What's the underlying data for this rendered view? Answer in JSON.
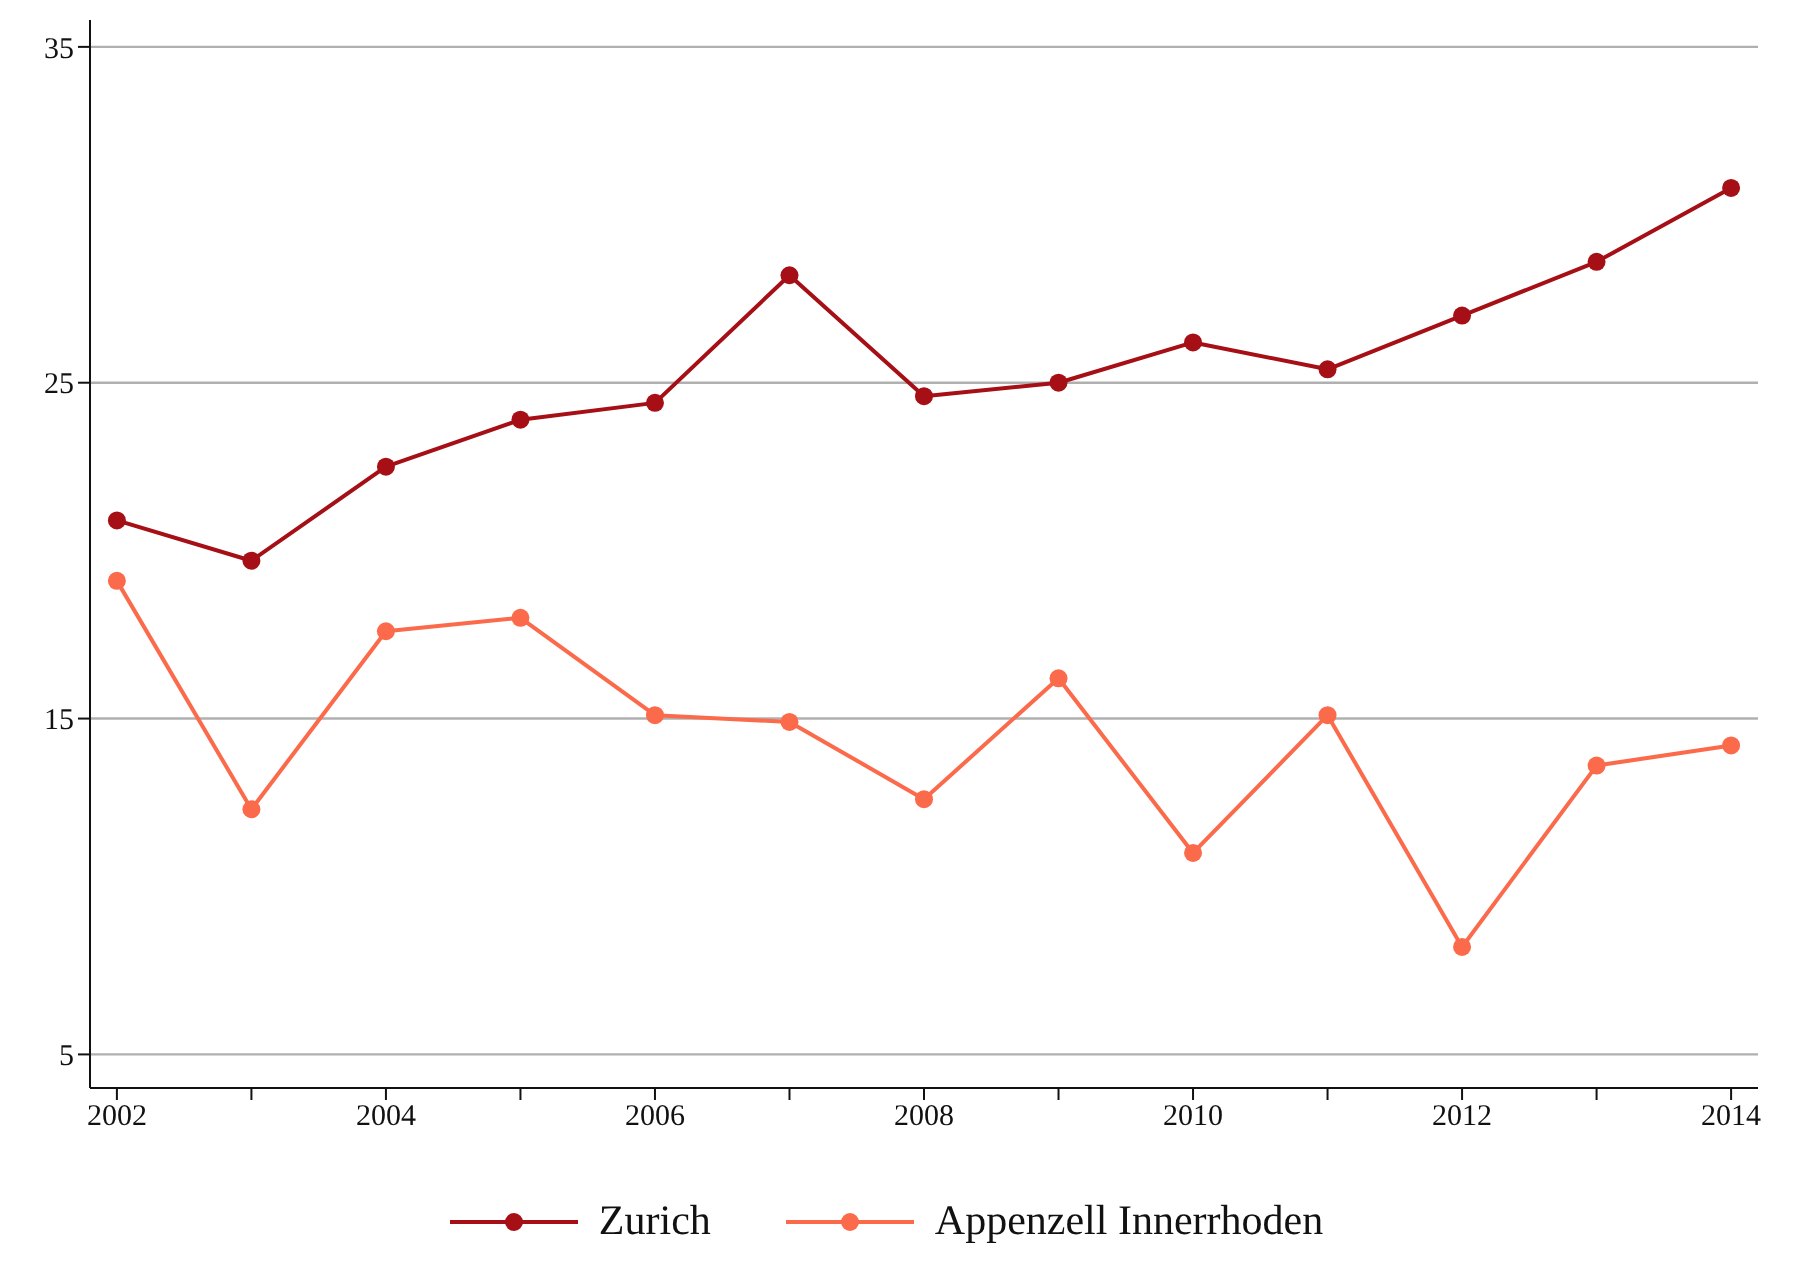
{
  "chart_data": {
    "type": "line",
    "x": [
      2002,
      2003,
      2004,
      2005,
      2006,
      2007,
      2008,
      2009,
      2010,
      2011,
      2012,
      2013,
      2014
    ],
    "series": [
      {
        "name": "Zurich",
        "color": "#a50f15",
        "values": [
          20.9,
          19.7,
          22.5,
          23.9,
          24.4,
          28.2,
          24.6,
          25.0,
          26.2,
          25.4,
          27.0,
          28.6,
          30.8
        ]
      },
      {
        "name": "Appenzell Innerrhoden",
        "color": "#fb6a4a",
        "values": [
          19.1,
          12.3,
          17.6,
          18.0,
          15.1,
          14.9,
          12.6,
          16.2,
          11.0,
          15.1,
          8.2,
          13.6,
          14.2
        ]
      }
    ],
    "xlim": [
      2001.8,
      2014.2
    ],
    "xticks": [
      2002,
      {
        "value": 2003,
        "label": null
      },
      2004,
      {
        "value": 2005,
        "label": null
      },
      2006,
      {
        "value": 2007,
        "label": null
      },
      2008,
      {
        "value": 2009,
        "label": null
      },
      2010,
      {
        "value": 2011,
        "label": null
      },
      2012,
      {
        "value": 2013,
        "label": null
      },
      2014
    ],
    "ylim": [
      4,
      35.8
    ],
    "yticks": [
      5,
      15,
      25,
      35
    ],
    "grid": "y",
    "legend": "bottom",
    "marker": "circle",
    "line_style": "solid"
  }
}
